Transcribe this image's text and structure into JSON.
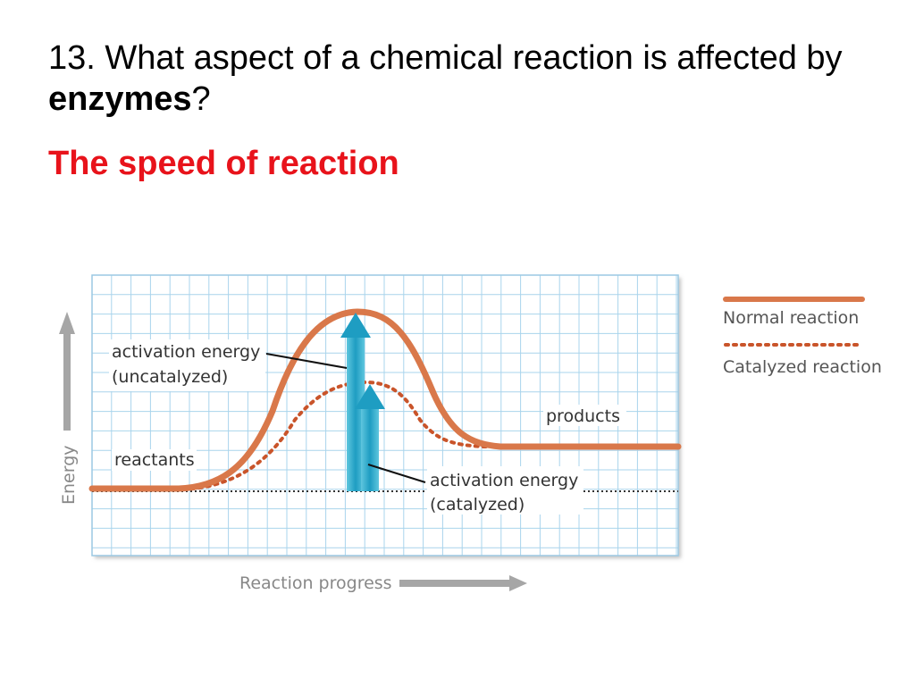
{
  "slide": {
    "question_prefix": "13. What aspect of a chemical reaction is affected by ",
    "question_bold": "enzymes",
    "question_suffix": "?",
    "answer": "The speed of reaction"
  },
  "colors": {
    "answer": "#e8131b",
    "normal_curve": "#d9784a",
    "catalyzed_curve": "#c9542a",
    "grid": "#a9d4ec",
    "arrow": "#2aa7c8",
    "axis_arrow": "#a6a6a6"
  },
  "figure": {
    "labels": {
      "activation_uncatalyzed_1": "activation energy",
      "activation_uncatalyzed_2": "(uncatalyzed)",
      "activation_catalyzed_1": "activation energy",
      "activation_catalyzed_2": "(catalyzed)",
      "reactants": "reactants",
      "products": "products",
      "y_axis": "Energy",
      "x_axis": "Reaction progress"
    },
    "legend": {
      "normal": "Normal reaction",
      "catalyzed": "Catalyzed reaction"
    }
  }
}
